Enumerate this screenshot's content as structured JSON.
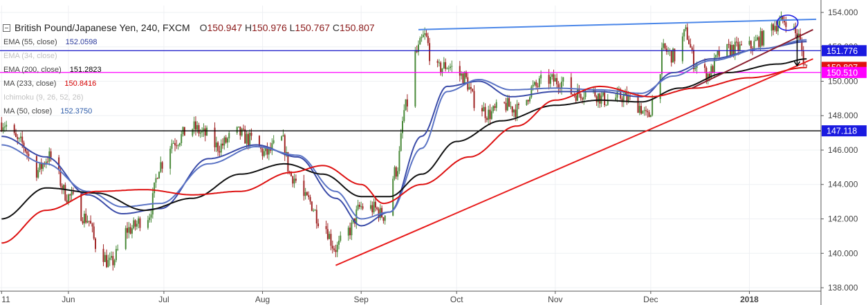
{
  "header": {
    "symbol": "British Pound/Japanese Yen, 240, FXCM",
    "open_label": "O",
    "open": "150.947",
    "high_label": "H",
    "high": "150.976",
    "low_label": "L",
    "low": "150.767",
    "close_label": "C",
    "close": "150.807"
  },
  "indicators": [
    {
      "label": "EMA (55, close)",
      "value": "152.0598",
      "color": "#2b3a9c",
      "faded": false
    },
    {
      "label": "EMA (34, close)",
      "value": "",
      "color": "#c8c8c8",
      "faded": true
    },
    {
      "label": "EMA (200, close)",
      "value": "151.2823",
      "color": "#000000",
      "faded": false
    },
    {
      "label": "MA (233, close)",
      "value": "150.8416",
      "color": "#d40000",
      "faded": false
    },
    {
      "label": "Ichimoku (9, 26, 52, 26)",
      "value": "",
      "color": "#c8c8c8",
      "faded": true
    },
    {
      "label": "MA (50, close)",
      "value": "152.3750",
      "color": "#2b5aa8",
      "faded": false
    }
  ],
  "chart_data": {
    "type": "line",
    "title": "British Pound/Japanese Yen, 240, FXCM",
    "ylim": [
      137.8,
      154.4
    ],
    "y_ticks": [
      138,
      140,
      142,
      144,
      146,
      148,
      150,
      152,
      154
    ],
    "y_tick_labels": [
      "138.000",
      "140.000",
      "142.000",
      "144.000",
      "146.000",
      "148.000",
      "150.000",
      "152.000",
      "154.000"
    ],
    "x_range": [
      "2017-05-11",
      "2018-01-19"
    ],
    "x_ticks": [
      "2017-05-11",
      "2017-06-01",
      "2017-07-01",
      "2017-08-01",
      "2017-09-01",
      "2017-10-01",
      "2017-11-01",
      "2017-12-01",
      "2018-01-01"
    ],
    "x_tick_labels": [
      "11",
      "Jun",
      "Jul",
      "Aug",
      "Sep",
      "Oct",
      "Nov",
      "Dec",
      "2018"
    ],
    "price_anchors": [
      [
        "2017-05-11",
        147.6
      ],
      [
        "2017-05-17",
        146.4
      ],
      [
        "2017-05-22",
        144.8
      ],
      [
        "2017-05-26",
        145.6
      ],
      [
        "2017-06-01",
        143.3
      ],
      [
        "2017-06-07",
        142.0
      ],
      [
        "2017-06-10",
        140.4
      ],
      [
        "2017-06-14",
        139.4
      ],
      [
        "2017-06-20",
        141.4
      ],
      [
        "2017-06-26",
        142.2
      ],
      [
        "2017-06-30",
        145.2
      ],
      [
        "2017-07-04",
        146.5
      ],
      [
        "2017-07-10",
        147.3
      ],
      [
        "2017-07-14",
        146.9
      ],
      [
        "2017-07-18",
        146.2
      ],
      [
        "2017-07-24",
        147.0
      ],
      [
        "2017-07-28",
        146.6
      ],
      [
        "2017-08-02",
        145.8
      ],
      [
        "2017-08-07",
        146.6
      ],
      [
        "2017-08-10",
        144.5
      ],
      [
        "2017-08-15",
        143.1
      ],
      [
        "2017-08-20",
        141.7
      ],
      [
        "2017-08-24",
        140.3
      ],
      [
        "2017-08-28",
        141.3
      ],
      [
        "2017-09-01",
        142.7
      ],
      [
        "2017-09-05",
        142.6
      ],
      [
        "2017-09-08",
        142.2
      ],
      [
        "2017-09-12",
        144.8
      ],
      [
        "2017-09-15",
        148.5
      ],
      [
        "2017-09-18",
        151.6
      ],
      [
        "2017-09-21",
        152.6
      ],
      [
        "2017-09-24",
        150.6
      ],
      [
        "2017-09-28",
        150.9
      ],
      [
        "2017-10-03",
        150.3
      ],
      [
        "2017-10-07",
        148.8
      ],
      [
        "2017-10-11",
        148.1
      ],
      [
        "2017-10-16",
        148.6
      ],
      [
        "2017-10-21",
        148.3
      ],
      [
        "2017-10-25",
        149.6
      ],
      [
        "2017-10-29",
        150.1
      ],
      [
        "2017-11-02",
        150.0
      ],
      [
        "2017-11-07",
        149.3
      ],
      [
        "2017-11-12",
        149.4
      ],
      [
        "2017-11-17",
        148.9
      ],
      [
        "2017-11-22",
        149.1
      ],
      [
        "2017-11-27",
        148.6
      ],
      [
        "2017-11-30",
        147.9
      ],
      [
        "2017-12-03",
        149.9
      ],
      [
        "2017-12-05",
        151.8
      ],
      [
        "2017-12-09",
        151.4
      ],
      [
        "2017-12-12",
        152.8
      ],
      [
        "2017-12-15",
        151.0
      ],
      [
        "2017-12-19",
        150.4
      ],
      [
        "2017-12-23",
        151.6
      ],
      [
        "2017-12-27",
        151.9
      ],
      [
        "2018-01-01",
        152.0
      ],
      [
        "2018-01-05",
        152.5
      ],
      [
        "2018-01-09",
        153.3
      ],
      [
        "2018-01-13",
        153.6
      ],
      [
        "2018-01-16",
        152.7
      ],
      [
        "2018-01-19",
        150.8
      ]
    ],
    "series": [
      {
        "name": "EMA (55, close)",
        "color": "#3a4ba8",
        "anchors": [
          [
            "2017-05-11",
            146.8
          ],
          [
            "2017-05-25",
            145.6
          ],
          [
            "2017-06-07",
            143.4
          ],
          [
            "2017-06-18",
            142.3
          ],
          [
            "2017-06-30",
            142.6
          ],
          [
            "2017-07-15",
            145.5
          ],
          [
            "2017-07-30",
            146.3
          ],
          [
            "2017-08-12",
            145.6
          ],
          [
            "2017-08-24",
            143.2
          ],
          [
            "2017-09-01",
            141.6
          ],
          [
            "2017-09-10",
            142.4
          ],
          [
            "2017-09-20",
            146.8
          ],
          [
            "2017-09-28",
            149.7
          ],
          [
            "2017-10-08",
            150.0
          ],
          [
            "2017-10-18",
            149.1
          ],
          [
            "2017-11-01",
            149.4
          ],
          [
            "2017-11-15",
            149.4
          ],
          [
            "2017-11-28",
            149.1
          ],
          [
            "2017-12-08",
            150.5
          ],
          [
            "2017-12-20",
            151.3
          ],
          [
            "2018-01-05",
            151.9
          ],
          [
            "2018-01-19",
            152.3
          ]
        ]
      },
      {
        "name": "MA (50, close)",
        "color": "#5a73c4",
        "anchors": [
          [
            "2017-05-11",
            146.3
          ],
          [
            "2017-05-25",
            145.2
          ],
          [
            "2017-06-07",
            143.6
          ],
          [
            "2017-06-18",
            142.7
          ],
          [
            "2017-06-30",
            142.9
          ],
          [
            "2017-07-15",
            145.2
          ],
          [
            "2017-07-30",
            146.2
          ],
          [
            "2017-08-12",
            145.7
          ],
          [
            "2017-08-24",
            143.6
          ],
          [
            "2017-09-01",
            142.0
          ],
          [
            "2017-09-10",
            142.4
          ],
          [
            "2017-09-20",
            146.1
          ],
          [
            "2017-09-28",
            149.4
          ],
          [
            "2017-10-08",
            150.1
          ],
          [
            "2017-10-18",
            149.5
          ],
          [
            "2017-11-01",
            149.6
          ],
          [
            "2017-11-15",
            149.5
          ],
          [
            "2017-11-28",
            149.3
          ],
          [
            "2017-12-08",
            150.3
          ],
          [
            "2017-12-20",
            151.2
          ],
          [
            "2018-01-05",
            151.9
          ],
          [
            "2018-01-19",
            152.4
          ]
        ]
      },
      {
        "name": "EMA (200, close)",
        "color": "#111111",
        "anchors": [
          [
            "2017-05-11",
            142.0
          ],
          [
            "2017-05-25",
            143.8
          ],
          [
            "2017-06-10",
            143.5
          ],
          [
            "2017-06-25",
            142.5
          ],
          [
            "2017-07-10",
            143.2
          ],
          [
            "2017-07-25",
            144.6
          ],
          [
            "2017-08-08",
            145.2
          ],
          [
            "2017-08-20",
            144.6
          ],
          [
            "2017-09-01",
            143.3
          ],
          [
            "2017-09-10",
            143.3
          ],
          [
            "2017-09-20",
            144.6
          ],
          [
            "2017-10-01",
            146.5
          ],
          [
            "2017-10-15",
            147.7
          ],
          [
            "2017-11-01",
            148.6
          ],
          [
            "2017-11-15",
            148.9
          ],
          [
            "2017-11-28",
            148.8
          ],
          [
            "2017-12-10",
            149.6
          ],
          [
            "2017-12-25",
            150.5
          ],
          [
            "2018-01-10",
            151.0
          ],
          [
            "2018-01-19",
            151.3
          ]
        ]
      },
      {
        "name": "MA (233, close)",
        "color": "#dd1111",
        "anchors": [
          [
            "2017-05-11",
            140.6
          ],
          [
            "2017-05-25",
            142.5
          ],
          [
            "2017-06-10",
            143.6
          ],
          [
            "2017-06-25",
            143.7
          ],
          [
            "2017-07-10",
            143.4
          ],
          [
            "2017-07-25",
            143.6
          ],
          [
            "2017-08-10",
            144.7
          ],
          [
            "2017-08-20",
            145.1
          ],
          [
            "2017-09-01",
            144.0
          ],
          [
            "2017-09-08",
            142.9
          ],
          [
            "2017-09-20",
            144.0
          ],
          [
            "2017-10-05",
            145.6
          ],
          [
            "2017-10-20",
            147.4
          ],
          [
            "2017-11-01",
            148.9
          ],
          [
            "2017-11-15",
            149.7
          ],
          [
            "2017-12-01",
            149.1
          ],
          [
            "2017-12-15",
            149.6
          ],
          [
            "2018-01-01",
            150.2
          ],
          [
            "2018-01-19",
            150.8
          ]
        ]
      }
    ],
    "trendlines": [
      {
        "from": [
          "2017-08-24",
          139.3
        ],
        "to": [
          "2018-01-21",
          151.3
        ],
        "color": "#e81c1c"
      },
      {
        "from": [
          "2017-09-19",
          153.0
        ],
        "to": [
          "2018-01-22",
          153.6
        ],
        "color": "#4a86e8"
      },
      {
        "from": [
          "2017-12-14",
          149.6
        ],
        "to": [
          "2018-01-21",
          153.0
        ],
        "color": "#8a1e2e"
      }
    ],
    "hlines": [
      {
        "y": 151.776,
        "color": "#1515c8"
      },
      {
        "y": 150.51,
        "color": "#ff00ff"
      },
      {
        "y": 147.118,
        "color": "#000000"
      }
    ],
    "price_tags": [
      {
        "value": 151.776,
        "label": "151.776",
        "bg": "#1a1ae0",
        "fg": "#ffffff"
      },
      {
        "value": 150.807,
        "label": "150.807",
        "bg": "#e01212",
        "fg": "#ffffff"
      },
      {
        "value": 150.51,
        "label": "150.510",
        "bg": "#ff00ff",
        "fg": "#ffffff"
      },
      {
        "value": 147.118,
        "label": "147.118",
        "bg": "#1a1ae0",
        "fg": "#ffffff"
      }
    ],
    "annotations": [
      {
        "type": "ellipse",
        "center": [
          "2018-01-13",
          153.4
        ],
        "color": "#1a1ae0"
      },
      {
        "type": "arrow",
        "from": [
          "2018-01-16",
          152.7
        ],
        "to": [
          "2018-01-16",
          150.9
        ],
        "color": "#000000"
      }
    ]
  }
}
